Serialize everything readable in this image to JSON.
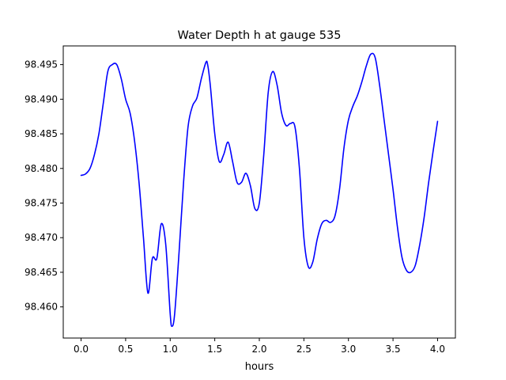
{
  "chart_data": {
    "type": "line",
    "title": "Water Depth h at gauge 535",
    "xlabel": "hours",
    "ylabel": "",
    "xlim": [
      -0.2,
      4.2
    ],
    "ylim": [
      98.4555,
      98.4977
    ],
    "grid": false,
    "x_ticks": [
      0.0,
      0.5,
      1.0,
      1.5,
      2.0,
      2.5,
      3.0,
      3.5,
      4.0
    ],
    "x_tick_labels": [
      "0.0",
      "0.5",
      "1.0",
      "1.5",
      "2.0",
      "2.5",
      "3.0",
      "3.5",
      "4.0"
    ],
    "y_ticks": [
      98.46,
      98.465,
      98.47,
      98.475,
      98.48,
      98.485,
      98.49,
      98.495
    ],
    "y_tick_labels": [
      "98.460",
      "98.465",
      "98.470",
      "98.475",
      "98.480",
      "98.485",
      "98.490",
      "98.495"
    ],
    "series": [
      {
        "color": "#0000ff",
        "x": [
          0.0,
          0.05,
          0.1,
          0.15,
          0.2,
          0.25,
          0.3,
          0.35,
          0.4,
          0.45,
          0.5,
          0.55,
          0.6,
          0.65,
          0.7,
          0.75,
          0.8,
          0.85,
          0.9,
          0.95,
          1.0,
          1.02,
          1.05,
          1.1,
          1.15,
          1.2,
          1.25,
          1.3,
          1.35,
          1.4,
          1.42,
          1.45,
          1.5,
          1.55,
          1.6,
          1.65,
          1.7,
          1.75,
          1.8,
          1.85,
          1.9,
          1.95,
          2.0,
          2.05,
          2.1,
          2.15,
          2.2,
          2.25,
          2.3,
          2.35,
          2.4,
          2.45,
          2.5,
          2.55,
          2.6,
          2.65,
          2.7,
          2.75,
          2.8,
          2.85,
          2.9,
          2.95,
          3.0,
          3.05,
          3.1,
          3.15,
          3.2,
          3.25,
          3.3,
          3.35,
          3.4,
          3.45,
          3.5,
          3.55,
          3.6,
          3.65,
          3.7,
          3.75,
          3.8,
          3.85,
          3.9,
          3.95,
          4.0
        ],
        "y": [
          98.479,
          98.4792,
          98.48,
          98.482,
          98.485,
          98.4895,
          98.494,
          98.495,
          98.495,
          98.493,
          98.49,
          98.488,
          98.484,
          98.478,
          98.47,
          98.462,
          98.467,
          98.467,
          98.472,
          98.469,
          98.459,
          98.4572,
          98.459,
          98.468,
          98.478,
          98.486,
          98.489,
          98.4902,
          98.493,
          98.4953,
          98.495,
          98.492,
          98.485,
          98.481,
          98.482,
          98.4838,
          98.481,
          98.478,
          98.478,
          98.4793,
          98.4775,
          98.4742,
          98.475,
          98.482,
          98.491,
          98.494,
          98.492,
          98.488,
          98.4862,
          98.4865,
          98.486,
          98.48,
          98.47,
          98.4658,
          98.4665,
          98.4698,
          98.472,
          98.4725,
          98.4722,
          98.4732,
          98.477,
          98.483,
          98.487,
          98.489,
          98.4905,
          98.4925,
          98.4948,
          98.4965,
          98.496,
          98.492,
          98.487,
          98.482,
          98.477,
          98.4715,
          98.4672,
          98.4653,
          98.465,
          98.466,
          98.469,
          98.473,
          98.478,
          98.4825,
          98.4868
        ]
      }
    ]
  }
}
